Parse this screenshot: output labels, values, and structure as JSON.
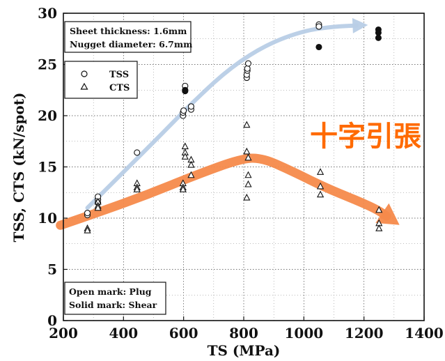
{
  "chart_data": {
    "type": "scatter",
    "xlabel": "TS (MPa)",
    "ylabel": "TSS, CTS (kN/spot)",
    "xlim": [
      200,
      1400
    ],
    "ylim": [
      0,
      30
    ],
    "xticks": [
      "200",
      "400",
      "600",
      "800",
      "1000",
      "1200",
      "1400"
    ],
    "yticks": [
      "0",
      "5",
      "10",
      "15",
      "20",
      "25",
      "30"
    ],
    "grid": true,
    "info_box": [
      "Sheet thickness: 1.6mm",
      "Nugget diameter: 6.7mm"
    ],
    "legend": {
      "placement": "top-left",
      "entries": [
        {
          "label": "TSS",
          "marker": "circle"
        },
        {
          "label": "CTS",
          "marker": "triangle"
        }
      ]
    },
    "mark_box": [
      "Open mark: Plug",
      "Solid mark: Shear"
    ],
    "annotation": "十字引張",
    "series": [
      {
        "name": "TSS",
        "marker": "circle",
        "points": [
          {
            "x": 280,
            "y": 10.3,
            "filled": false
          },
          {
            "x": 280,
            "y": 10.5,
            "filled": false
          },
          {
            "x": 315,
            "y": 11.8,
            "filled": false
          },
          {
            "x": 315,
            "y": 12.1,
            "filled": false
          },
          {
            "x": 315,
            "y": 11.5,
            "filled": false
          },
          {
            "x": 445,
            "y": 16.4,
            "filled": false
          },
          {
            "x": 598,
            "y": 20.0,
            "filled": false
          },
          {
            "x": 598,
            "y": 20.3,
            "filled": false
          },
          {
            "x": 600,
            "y": 20.5,
            "filled": false
          },
          {
            "x": 605,
            "y": 22.9,
            "filled": false
          },
          {
            "x": 605,
            "y": 22.5,
            "filled": true
          },
          {
            "x": 605,
            "y": 22.4,
            "filled": true
          },
          {
            "x": 625,
            "y": 20.6,
            "filled": false
          },
          {
            "x": 625,
            "y": 20.9,
            "filled": false
          },
          {
            "x": 810,
            "y": 23.7,
            "filled": false
          },
          {
            "x": 810,
            "y": 24.0,
            "filled": false
          },
          {
            "x": 812,
            "y": 24.4,
            "filled": false
          },
          {
            "x": 812,
            "y": 24.6,
            "filled": false
          },
          {
            "x": 815,
            "y": 25.1,
            "filled": false
          },
          {
            "x": 1050,
            "y": 28.9,
            "filled": false
          },
          {
            "x": 1050,
            "y": 28.7,
            "filled": false
          },
          {
            "x": 1050,
            "y": 26.7,
            "filled": true
          },
          {
            "x": 1248,
            "y": 28.4,
            "filled": true
          },
          {
            "x": 1248,
            "y": 28.1,
            "filled": true
          },
          {
            "x": 1248,
            "y": 27.6,
            "filled": true
          }
        ]
      },
      {
        "name": "CTS",
        "marker": "triangle",
        "points": [
          {
            "x": 280,
            "y": 9.0,
            "filled": false
          },
          {
            "x": 280,
            "y": 8.8,
            "filled": false
          },
          {
            "x": 315,
            "y": 11.6,
            "filled": false
          },
          {
            "x": 315,
            "y": 11.2,
            "filled": false
          },
          {
            "x": 315,
            "y": 11.0,
            "filled": false
          },
          {
            "x": 445,
            "y": 13.4,
            "filled": false
          },
          {
            "x": 445,
            "y": 13.0,
            "filled": false
          },
          {
            "x": 445,
            "y": 12.8,
            "filled": false
          },
          {
            "x": 598,
            "y": 13.4,
            "filled": false
          },
          {
            "x": 598,
            "y": 13.0,
            "filled": false
          },
          {
            "x": 598,
            "y": 12.8,
            "filled": false
          },
          {
            "x": 605,
            "y": 17.0,
            "filled": false
          },
          {
            "x": 605,
            "y": 16.4,
            "filled": false
          },
          {
            "x": 605,
            "y": 16.0,
            "filled": false
          },
          {
            "x": 625,
            "y": 15.7,
            "filled": false
          },
          {
            "x": 625,
            "y": 15.2,
            "filled": false
          },
          {
            "x": 625,
            "y": 14.2,
            "filled": false
          },
          {
            "x": 810,
            "y": 19.1,
            "filled": false
          },
          {
            "x": 810,
            "y": 16.5,
            "filled": false
          },
          {
            "x": 815,
            "y": 15.9,
            "filled": false
          },
          {
            "x": 815,
            "y": 14.2,
            "filled": false
          },
          {
            "x": 815,
            "y": 13.3,
            "filled": false
          },
          {
            "x": 810,
            "y": 12.0,
            "filled": false
          },
          {
            "x": 1055,
            "y": 14.5,
            "filled": false
          },
          {
            "x": 1055,
            "y": 13.1,
            "filled": false
          },
          {
            "x": 1055,
            "y": 12.3,
            "filled": false
          },
          {
            "x": 1250,
            "y": 10.8,
            "filled": false
          },
          {
            "x": 1250,
            "y": 9.5,
            "filled": false
          },
          {
            "x": 1250,
            "y": 9.0,
            "filled": false
          }
        ]
      }
    ],
    "trend_arrows": [
      {
        "color": "#b8cde6",
        "points": [
          [
            280,
            11.0
          ],
          [
            400,
            14.5
          ],
          [
            520,
            18.0
          ],
          [
            640,
            21.6
          ],
          [
            760,
            24.8
          ],
          [
            880,
            27.0
          ],
          [
            1000,
            28.3
          ],
          [
            1100,
            28.7
          ],
          [
            1175,
            28.8
          ]
        ]
      },
      {
        "color": "#f58a4b",
        "points": [
          [
            190,
            9.3
          ],
          [
            320,
            10.6
          ],
          [
            480,
            12.3
          ],
          [
            640,
            14.2
          ],
          [
            790,
            15.8
          ],
          [
            860,
            15.9
          ],
          [
            960,
            14.6
          ],
          [
            1070,
            13.0
          ],
          [
            1170,
            11.8
          ],
          [
            1240,
            10.9
          ],
          [
            1275,
            10.2
          ]
        ]
      }
    ]
  }
}
